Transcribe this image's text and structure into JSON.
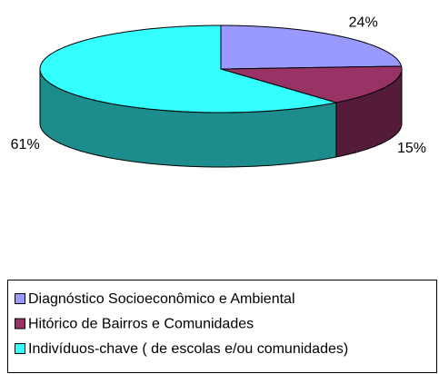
{
  "chart_data": {
    "type": "pie",
    "categories": [
      "Diagnóstico Socioeconômico e Ambiental",
      "Hitórico de Bairros e Comunidades",
      "Indivíduos-chave ( de escolas e/ou comunidades)"
    ],
    "values": [
      24,
      15,
      61
    ],
    "value_labels": [
      "24%",
      "15%",
      "61%"
    ],
    "colors": [
      "#9999ff",
      "#993366",
      "#33ffff"
    ],
    "legend": "bottom"
  }
}
